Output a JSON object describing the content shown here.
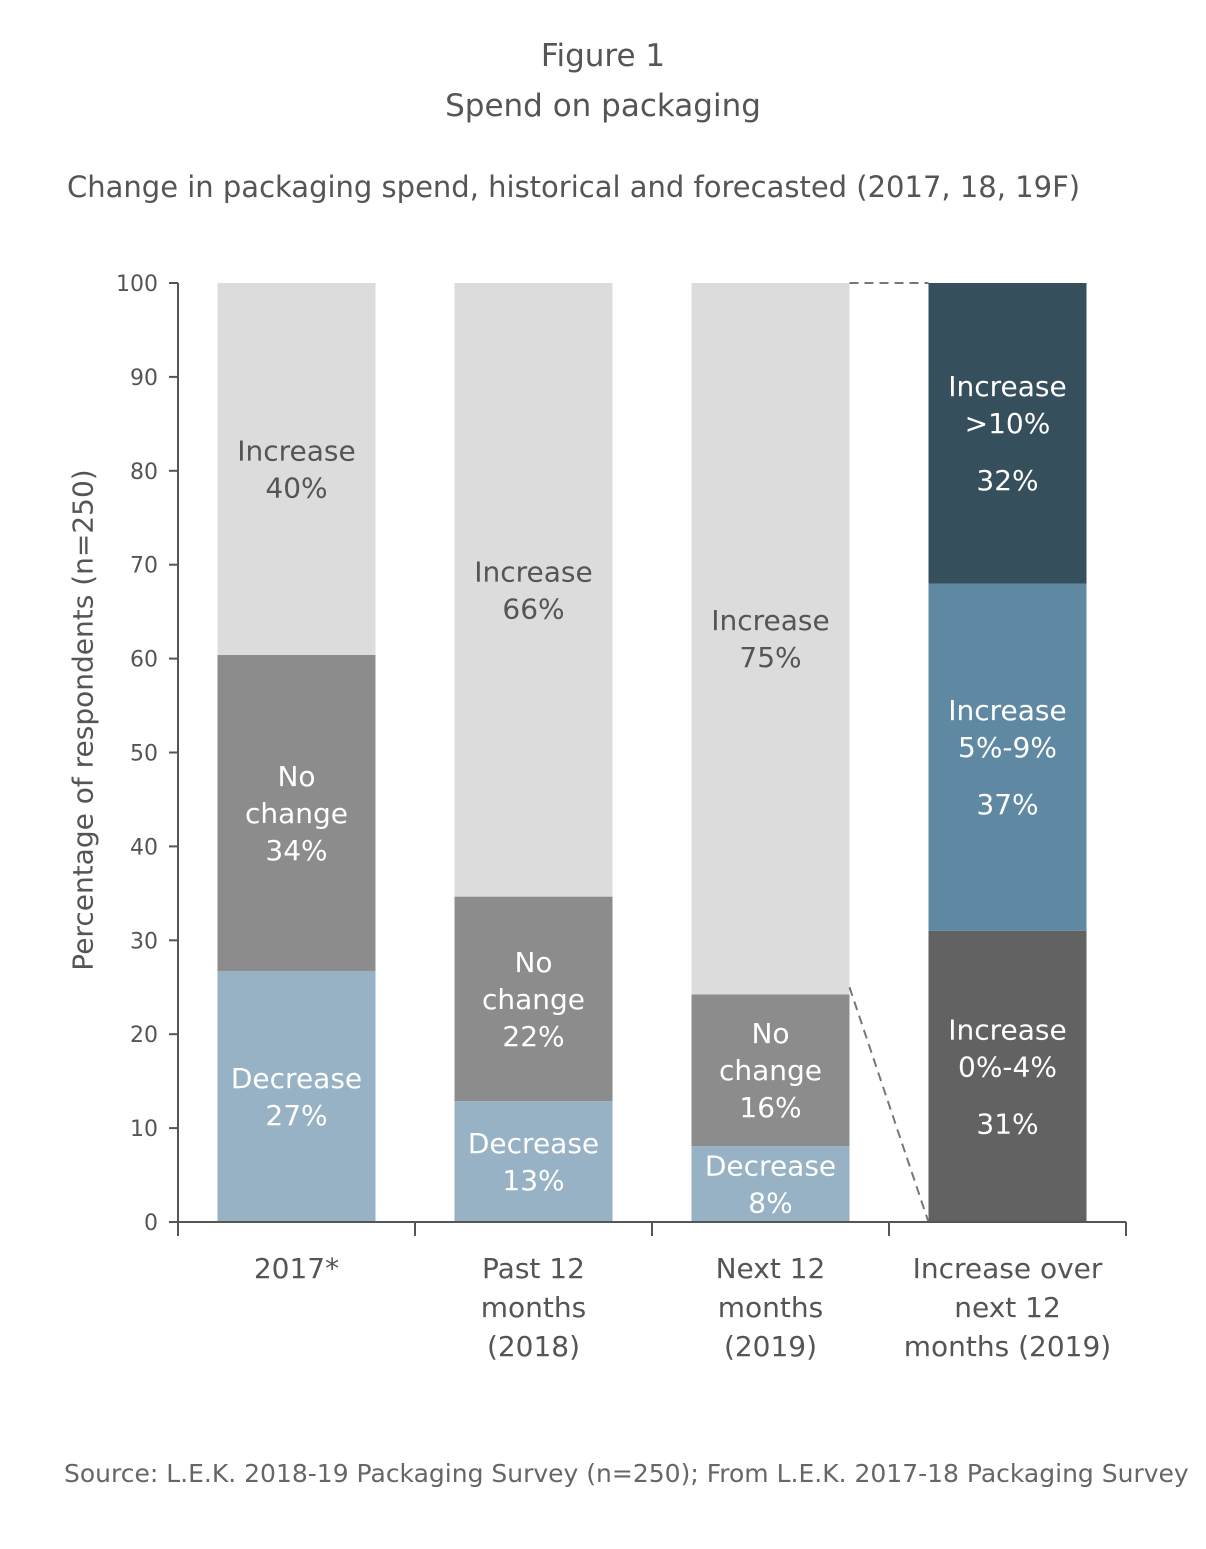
{
  "figure_label": "Figure 1",
  "title": "Spend on packaging",
  "subtitle": "Change in packaging spend, historical and forecasted (2017, 18, 19F)",
  "source": "Source: L.E.K. 2018-19 Packaging Survey (n=250); From L.E.K. 2017-18 Packaging Survey",
  "chart_data": {
    "type": "bar",
    "stacked": true,
    "ylabel": "Percentage of respondents (n=250)",
    "ylim": [
      0,
      100
    ],
    "yticks": [
      0,
      10,
      20,
      30,
      40,
      50,
      60,
      70,
      80,
      90,
      100
    ],
    "categories": [
      [
        "2017*"
      ],
      [
        "Past 12",
        "months",
        "(2018)"
      ],
      [
        "Next 12",
        "months",
        "(2019)"
      ],
      [
        "Increase over",
        "next 12",
        "months (2019)"
      ]
    ],
    "bars": [
      {
        "segments": [
          {
            "value": 27,
            "lines": [
              "Decrease",
              "27%"
            ],
            "color": "#96b2c4",
            "text_color": "#ffffff"
          },
          {
            "value": 34,
            "lines": [
              "No",
              "change",
              "34%"
            ],
            "color": "#8c8c8c",
            "text_color": "#ffffff"
          },
          {
            "value": 40,
            "lines": [
              "Increase",
              "40%"
            ],
            "color": "#dcdcdc",
            "text_color": "#555555"
          }
        ]
      },
      {
        "segments": [
          {
            "value": 13,
            "lines": [
              "Decrease",
              "13%"
            ],
            "color": "#96b2c4",
            "text_color": "#ffffff"
          },
          {
            "value": 22,
            "lines": [
              "No",
              "change",
              "22%"
            ],
            "color": "#8c8c8c",
            "text_color": "#ffffff"
          },
          {
            "value": 66,
            "lines": [
              "Increase",
              "66%"
            ],
            "color": "#dcdcdc",
            "text_color": "#555555"
          }
        ]
      },
      {
        "segments": [
          {
            "value": 8,
            "lines": [
              "Decrease",
              "8%"
            ],
            "color": "#96b2c4",
            "text_color": "#ffffff"
          },
          {
            "value": 16,
            "lines": [
              "No",
              "change",
              "16%"
            ],
            "color": "#8c8c8c",
            "text_color": "#ffffff"
          },
          {
            "value": 75,
            "lines": [
              "Increase",
              "75%"
            ],
            "color": "#dcdcdc",
            "text_color": "#555555"
          }
        ]
      },
      {
        "segments": [
          {
            "value": 31,
            "lines": [
              "Increase",
              "0%-4%",
              "31%"
            ],
            "color": "#626262",
            "text_color": "#ffffff"
          },
          {
            "value": 37,
            "lines": [
              "Increase",
              "5%-9%",
              "37%"
            ],
            "color": "#5f89a2",
            "text_color": "#ffffff"
          },
          {
            "value": 32,
            "lines": [
              "Increase",
              ">10%",
              "32%"
            ],
            "color": "#364f5c",
            "text_color": "#ffffff"
          }
        ]
      }
    ],
    "connector": {
      "from_bar": 2,
      "to_bar": 3,
      "from_top": 100,
      "from_bottom": 25,
      "color": "#777777"
    },
    "axis_color": "#555555",
    "grid": false,
    "legend": "none"
  }
}
